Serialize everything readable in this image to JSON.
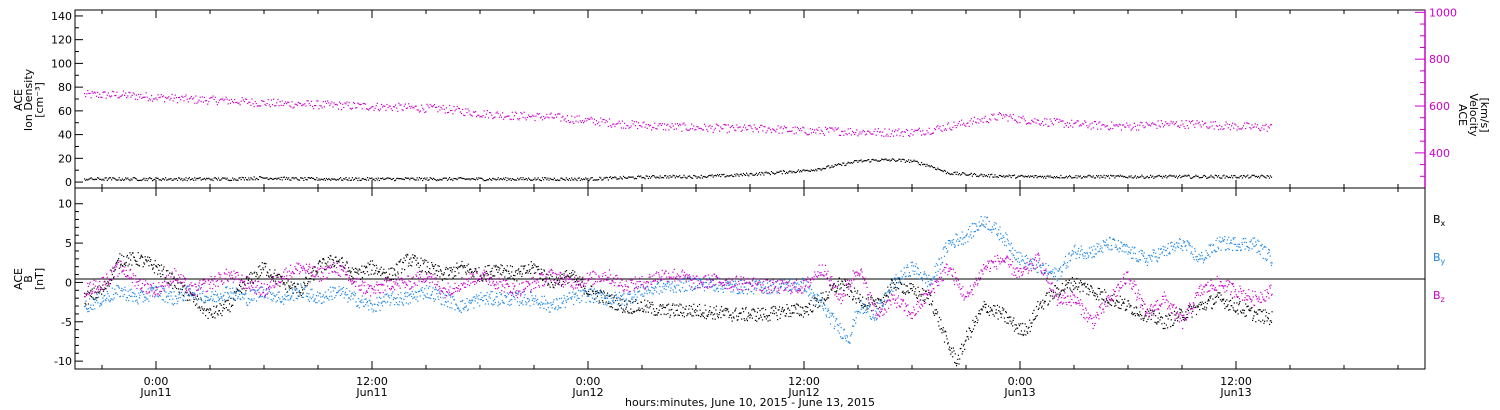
{
  "x_axis": {
    "ticks": [
      {
        "t": 24,
        "time": "0:00",
        "day": "Jun11"
      },
      {
        "t": 36,
        "time": "12:00",
        "day": "Jun11"
      },
      {
        "t": 48,
        "time": "0:00",
        "day": "Jun12"
      },
      {
        "t": 60,
        "time": "12:00",
        "day": "Jun12"
      },
      {
        "t": 72,
        "time": "0:00",
        "day": "Jun13"
      },
      {
        "t": 84,
        "time": "12:00",
        "day": "Jun13"
      }
    ],
    "caption": "hours:minutes, June 10, 2015 - June 13, 2015"
  },
  "chart_data": [
    {
      "type": "scatter",
      "xlabel": "hours:minutes, June 10, 2015 - June 13, 2015",
      "xlim_hours_from_jun10": [
        19.5,
        94.5
      ],
      "ylabel_left": [
        "ACE",
        "Ion Density",
        "[cm⁻³]"
      ],
      "ylabel_right": [
        "ACE",
        "Velocity",
        "[km/s]"
      ],
      "ylim_left": [
        -5,
        145
      ],
      "yticks_left": [
        0,
        20,
        40,
        60,
        80,
        100,
        120,
        140
      ],
      "ylim_right": [
        250,
        1010
      ],
      "yticks_right": [
        400,
        600,
        800,
        1000
      ],
      "series": [
        {
          "name": "Ion Density",
          "axis": "left",
          "color": "#000000",
          "points": [
            [
              20,
              3
            ],
            [
              24,
              3
            ],
            [
              28,
              3
            ],
            [
              30,
              4
            ],
            [
              32,
              3
            ],
            [
              36,
              3
            ],
            [
              40,
              3
            ],
            [
              44,
              3
            ],
            [
              48,
              3
            ],
            [
              50,
              4
            ],
            [
              52,
              5
            ],
            [
              54,
              5
            ],
            [
              56,
              6
            ],
            [
              58,
              8
            ],
            [
              60,
              10
            ],
            [
              61,
              12
            ],
            [
              62,
              15
            ],
            [
              63,
              18
            ],
            [
              64,
              19
            ],
            [
              65,
              19
            ],
            [
              66,
              18
            ],
            [
              67,
              14
            ],
            [
              68,
              8
            ],
            [
              70,
              6
            ],
            [
              72,
              5
            ],
            [
              76,
              5
            ],
            [
              80,
              5
            ],
            [
              84,
              5
            ],
            [
              86,
              5
            ]
          ]
        },
        {
          "name": "Velocity",
          "axis": "right",
          "color": "#cc00cc",
          "points": [
            [
              20,
              650
            ],
            [
              22,
              650
            ],
            [
              24,
              640
            ],
            [
              26,
              630
            ],
            [
              28,
              625
            ],
            [
              30,
              615
            ],
            [
              32,
              610
            ],
            [
              36,
              600
            ],
            [
              40,
              590
            ],
            [
              42,
              570
            ],
            [
              44,
              560
            ],
            [
              46,
              555
            ],
            [
              48,
              540
            ],
            [
              50,
              525
            ],
            [
              52,
              515
            ],
            [
              54,
              510
            ],
            [
              56,
              505
            ],
            [
              58,
              505
            ],
            [
              60,
              495
            ],
            [
              62,
              495
            ],
            [
              64,
              490
            ],
            [
              66,
              490
            ],
            [
              67,
              500
            ],
            [
              68,
              515
            ],
            [
              70,
              545
            ],
            [
              71,
              560
            ],
            [
              72,
              545
            ],
            [
              74,
              530
            ],
            [
              76,
              520
            ],
            [
              78,
              515
            ],
            [
              80,
              525
            ],
            [
              82,
              525
            ],
            [
              84,
              515
            ],
            [
              86,
              510
            ]
          ]
        }
      ]
    },
    {
      "type": "scatter",
      "xlabel": "hours:minutes, June 10, 2015 - June 13, 2015",
      "xlim_hours_from_jun10": [
        19.5,
        94.5
      ],
      "ylabel_left": [
        "ACE",
        "B",
        "[nT]"
      ],
      "ylim": [
        -11,
        12
      ],
      "yticks": [
        -10,
        -5,
        0,
        5,
        10
      ],
      "zero_line": true,
      "series": [
        {
          "name": "Bx",
          "color": "#000000",
          "points": [
            [
              20,
              -2
            ],
            [
              21,
              -1
            ],
            [
              22,
              3
            ],
            [
              23,
              3
            ],
            [
              24,
              2
            ],
            [
              25,
              0
            ],
            [
              26,
              -2
            ],
            [
              27,
              -4
            ],
            [
              28,
              -3
            ],
            [
              29,
              0
            ],
            [
              30,
              2
            ],
            [
              31,
              0
            ],
            [
              32,
              -1
            ],
            [
              33,
              2
            ],
            [
              34,
              3
            ],
            [
              35,
              1
            ],
            [
              36,
              2
            ],
            [
              37,
              1
            ],
            [
              38,
              3
            ],
            [
              39,
              2
            ],
            [
              40,
              1
            ],
            [
              41,
              2
            ],
            [
              42,
              1
            ],
            [
              43,
              2
            ],
            [
              44,
              1
            ],
            [
              45,
              2
            ],
            [
              46,
              0
            ],
            [
              47,
              1
            ],
            [
              48,
              -1
            ],
            [
              49,
              -2
            ],
            [
              50,
              -3
            ],
            [
              51,
              -3
            ],
            [
              52,
              -3.5
            ],
            [
              54,
              -3.5
            ],
            [
              56,
              -4
            ],
            [
              58,
              -4
            ],
            [
              59,
              -3.5
            ],
            [
              60,
              -3.5
            ],
            [
              61,
              -2
            ],
            [
              62,
              0
            ],
            [
              63,
              -2
            ],
            [
              64,
              -3
            ],
            [
              65,
              0
            ],
            [
              66,
              -1
            ],
            [
              67,
              -2
            ],
            [
              68,
              -8
            ],
            [
              68.5,
              -10
            ],
            [
              69,
              -7
            ],
            [
              70,
              -3
            ],
            [
              71,
              -4
            ],
            [
              72,
              -6
            ],
            [
              72.5,
              -5.5
            ],
            [
              73,
              -3
            ],
            [
              74,
              -1
            ],
            [
              75,
              0
            ],
            [
              76,
              -1
            ],
            [
              77,
              -2
            ],
            [
              78,
              -3
            ],
            [
              79,
              -4
            ],
            [
              80,
              -5
            ],
            [
              81,
              -4
            ],
            [
              82,
              -3
            ],
            [
              83,
              -2
            ],
            [
              84,
              -3
            ],
            [
              85,
              -4
            ],
            [
              86,
              -4.5
            ]
          ]
        },
        {
          "name": "By",
          "color": "#1e88e5",
          "points": [
            [
              20,
              -3
            ],
            [
              21,
              -2
            ],
            [
              22,
              -1
            ],
            [
              23,
              -2
            ],
            [
              24,
              -1
            ],
            [
              25,
              -2
            ],
            [
              26,
              -1
            ],
            [
              27,
              -2
            ],
            [
              28,
              -1
            ],
            [
              29,
              -2
            ],
            [
              30,
              -1
            ],
            [
              31,
              -2
            ],
            [
              32,
              -1
            ],
            [
              33,
              -2
            ],
            [
              34,
              -1
            ],
            [
              35,
              -2
            ],
            [
              36,
              -3
            ],
            [
              37,
              -2
            ],
            [
              38,
              -2
            ],
            [
              39,
              -1
            ],
            [
              40,
              -2
            ],
            [
              41,
              -3
            ],
            [
              42,
              -2
            ],
            [
              43,
              -2
            ],
            [
              44,
              -2
            ],
            [
              45,
              -2
            ],
            [
              46,
              -3
            ],
            [
              47,
              -2
            ],
            [
              48,
              -1.5
            ],
            [
              49,
              -2
            ],
            [
              50,
              -2
            ],
            [
              51,
              -1
            ],
            [
              52,
              -0.5
            ],
            [
              53,
              -0.3
            ],
            [
              54,
              0
            ],
            [
              55,
              -0.2
            ],
            [
              56,
              -0.5
            ],
            [
              57,
              -0.5
            ],
            [
              58,
              -0.5
            ],
            [
              59,
              -0.3
            ],
            [
              60,
              -0.2
            ],
            [
              61,
              -3
            ],
            [
              62,
              -6
            ],
            [
              62.5,
              -7
            ],
            [
              63,
              -3
            ],
            [
              64,
              -4
            ],
            [
              65,
              0
            ],
            [
              66,
              2
            ],
            [
              67,
              0
            ],
            [
              68,
              5
            ],
            [
              69,
              6
            ],
            [
              70,
              8
            ],
            [
              71,
              6
            ],
            [
              72,
              3
            ],
            [
              73,
              2
            ],
            [
              74,
              1
            ],
            [
              75,
              4
            ],
            [
              76,
              4
            ],
            [
              77,
              5
            ],
            [
              78,
              4
            ],
            [
              79,
              3
            ],
            [
              80,
              4
            ],
            [
              81,
              5
            ],
            [
              82,
              3
            ],
            [
              83,
              5
            ],
            [
              84,
              5
            ],
            [
              85,
              5
            ],
            [
              86,
              3
            ]
          ]
        },
        {
          "name": "Bz",
          "color": "#cc00cc",
          "points": [
            [
              20,
              -1
            ],
            [
              21,
              0
            ],
            [
              22,
              2
            ],
            [
              23,
              0
            ],
            [
              24,
              -1
            ],
            [
              25,
              1
            ],
            [
              26,
              -1
            ],
            [
              27,
              0
            ],
            [
              28,
              1
            ],
            [
              29,
              0
            ],
            [
              30,
              -1
            ],
            [
              31,
              1
            ],
            [
              32,
              2
            ],
            [
              33,
              1
            ],
            [
              34,
              2
            ],
            [
              35,
              0
            ],
            [
              36,
              -1
            ],
            [
              37,
              0
            ],
            [
              38,
              0
            ],
            [
              39,
              1
            ],
            [
              40,
              -1
            ],
            [
              41,
              0
            ],
            [
              42,
              1
            ],
            [
              43,
              0
            ],
            [
              44,
              -1
            ],
            [
              45,
              0
            ],
            [
              46,
              1
            ],
            [
              47,
              0
            ],
            [
              48,
              0.5
            ],
            [
              49,
              1
            ],
            [
              50,
              -0.3
            ],
            [
              51,
              0
            ],
            [
              52,
              1
            ],
            [
              53,
              1
            ],
            [
              54,
              0
            ],
            [
              55,
              0.3
            ],
            [
              56,
              0
            ],
            [
              57,
              0
            ],
            [
              58,
              -0.5
            ],
            [
              59,
              -0.5
            ],
            [
              60,
              -0.5
            ],
            [
              61,
              2
            ],
            [
              62,
              -2
            ],
            [
              63,
              2
            ],
            [
              64,
              -4
            ],
            [
              65,
              -2
            ],
            [
              66,
              -4
            ],
            [
              67,
              -1
            ],
            [
              68,
              2
            ],
            [
              69,
              -2
            ],
            [
              70,
              2
            ],
            [
              71,
              3
            ],
            [
              72,
              1
            ],
            [
              73,
              3
            ],
            [
              74,
              -2
            ],
            [
              75,
              -2
            ],
            [
              76,
              -5
            ],
            [
              77,
              -2
            ],
            [
              78,
              1
            ],
            [
              79,
              -4
            ],
            [
              80,
              -2
            ],
            [
              81,
              -5
            ],
            [
              82,
              -1
            ],
            [
              83,
              0
            ],
            [
              84,
              -1
            ],
            [
              85,
              -2
            ],
            [
              86,
              -1
            ]
          ]
        }
      ],
      "legend": [
        {
          "base": "B",
          "sub": "x",
          "color": "#000000"
        },
        {
          "base": "B",
          "sub": "y",
          "color": "#1e88e5"
        },
        {
          "base": "B",
          "sub": "z",
          "color": "#cc00cc"
        }
      ],
      "legend_position": "right"
    }
  ]
}
